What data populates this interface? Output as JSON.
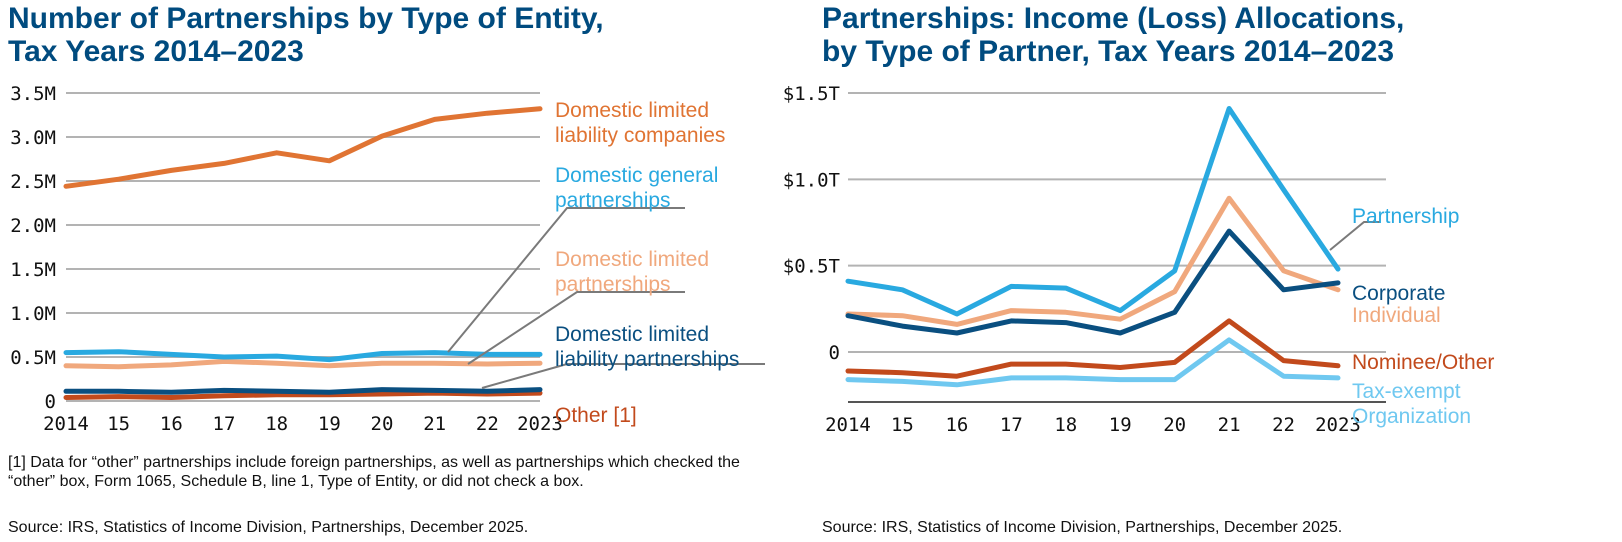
{
  "left": {
    "title_line1": "Number of Partnerships by Type of Entity,",
    "title_line2": "Tax Years 2014–2023",
    "footnote": "[1] Data for “other” partnerships include foreign partnerships, as well as partnerships which checked the “other” box, Form 1065, Schedule B, line 1, Type of Entity, or did not check a box.",
    "source": "Source: IRS, Statistics of Income Division, Partnerships, December 2025."
  },
  "right": {
    "title_line1": "Partnerships: Income (Loss) Allocations,",
    "title_line2": "by Type of Partner, Tax Years 2014–2023",
    "source": "Source: IRS, Statistics of Income Division, Partnerships, December 2025."
  },
  "chart_data": [
    {
      "type": "line",
      "title": "Number of Partnerships by Type of Entity, Tax Years 2014–2023",
      "x": [
        "2014",
        "15",
        "16",
        "17",
        "18",
        "19",
        "20",
        "21",
        "22",
        "2023"
      ],
      "ylim": [
        0,
        3500000
      ],
      "yticks": [
        0,
        500000,
        1000000,
        1500000,
        2000000,
        2500000,
        3000000,
        3500000
      ],
      "ytick_labels": [
        "0",
        "0.5M",
        "1.0M",
        "1.5M",
        "2.0M",
        "2.5M",
        "3.0M",
        "3.5M"
      ],
      "grid": true,
      "legend": "direct labels at right",
      "series": [
        {
          "name": "Domestic limited liability companies",
          "label_lines": [
            "Domestic limited",
            "liability companies"
          ],
          "color": "#e07433",
          "values": [
            2440000,
            2520000,
            2620000,
            2700000,
            2820000,
            2730000,
            3010000,
            3200000,
            3270000,
            3320000
          ]
        },
        {
          "name": "Domestic general partnerships",
          "label_lines": [
            "Domestic general",
            "partnerships"
          ],
          "color": "#29a9e0",
          "values": [
            550000,
            560000,
            530000,
            500000,
            510000,
            470000,
            540000,
            550000,
            530000,
            530000
          ]
        },
        {
          "name": "Domestic limited partnerships",
          "label_lines": [
            "Domestic limited",
            "partnerships"
          ],
          "color": "#f0a87d",
          "values": [
            400000,
            390000,
            410000,
            450000,
            430000,
            400000,
            430000,
            430000,
            420000,
            430000
          ]
        },
        {
          "name": "Domestic limited liability partnerships",
          "label_lines": [
            "Domestic limited",
            "liability partnerships"
          ],
          "color": "#0a4f80",
          "values": [
            110000,
            110000,
            100000,
            120000,
            110000,
            100000,
            130000,
            120000,
            110000,
            130000
          ]
        },
        {
          "name": "Other [1]",
          "label_lines": [
            "Other [1]"
          ],
          "color": "#c24a1c",
          "values": [
            40000,
            50000,
            40000,
            60000,
            70000,
            70000,
            80000,
            90000,
            80000,
            90000
          ]
        }
      ]
    },
    {
      "type": "line",
      "title": "Partnerships: Income (Loss) Allocations, by Type of Partner, Tax Years 2014–2023",
      "x": [
        "2014",
        "15",
        "16",
        "17",
        "18",
        "19",
        "20",
        "21",
        "22",
        "2023"
      ],
      "ylim": [
        -0.3,
        1.5
      ],
      "unit": "trillions of dollars",
      "yticks": [
        0,
        0.5,
        1.0,
        1.5
      ],
      "ytick_labels": [
        "0",
        "$0.5T",
        "$1.0T",
        "$1.5T"
      ],
      "grid": true,
      "legend": "direct labels at right",
      "series": [
        {
          "name": "Partnership",
          "label_lines": [
            "Partnership"
          ],
          "color": "#29a9e0",
          "values": [
            0.41,
            0.36,
            0.22,
            0.38,
            0.37,
            0.24,
            0.47,
            1.41,
            0.94,
            0.48
          ]
        },
        {
          "name": "Corporate",
          "label_lines": [
            "Corporate"
          ],
          "color": "#0a4f80",
          "values": [
            0.21,
            0.15,
            0.11,
            0.18,
            0.17,
            0.11,
            0.23,
            0.7,
            0.36,
            0.4
          ]
        },
        {
          "name": "Individual",
          "label_lines": [
            "Individual"
          ],
          "color": "#f0a87d",
          "values": [
            0.22,
            0.21,
            0.16,
            0.24,
            0.23,
            0.19,
            0.35,
            0.89,
            0.47,
            0.36
          ]
        },
        {
          "name": "Nominee/Other",
          "label_lines": [
            "Nominee/Other"
          ],
          "color": "#c24a1c",
          "values": [
            -0.11,
            -0.12,
            -0.14,
            -0.07,
            -0.07,
            -0.09,
            -0.06,
            0.18,
            -0.05,
            -0.08
          ]
        },
        {
          "name": "Tax-exempt Organization",
          "label_lines": [
            "Tax-exempt",
            "Organization"
          ],
          "color": "#6fc8f0",
          "values": [
            -0.16,
            -0.17,
            -0.19,
            -0.15,
            -0.15,
            -0.16,
            -0.16,
            0.07,
            -0.14,
            -0.15
          ]
        }
      ]
    }
  ]
}
